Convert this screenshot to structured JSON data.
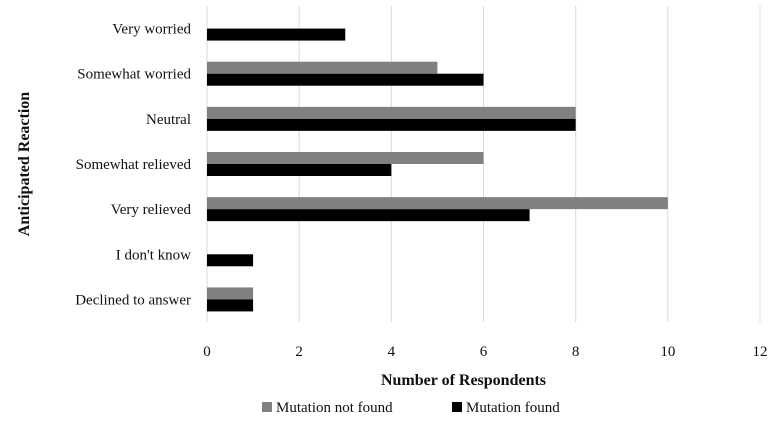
{
  "chart_data": {
    "type": "bar",
    "orientation": "horizontal",
    "title": "",
    "xlabel": "Number of Respondents",
    "ylabel": "Anticipated Reaction",
    "categories": [
      "Very worried",
      "Somewhat worried",
      "Neutral",
      "Somewhat relieved",
      "Very relieved",
      "I don't know",
      "Declined to answer"
    ],
    "series": [
      {
        "name": "Mutation not found",
        "color": "#808080",
        "values": [
          0,
          5,
          8,
          6,
          10,
          0,
          1
        ]
      },
      {
        "name": "Mutation found",
        "color": "#000000",
        "values": [
          3,
          6,
          8,
          4,
          7,
          1,
          1
        ]
      }
    ],
    "xlim": [
      0,
      12
    ],
    "xticks": [
      "0",
      "2",
      "4",
      "6",
      "8",
      "10",
      "12"
    ],
    "grid": "vertical",
    "legend_position": "bottom"
  }
}
